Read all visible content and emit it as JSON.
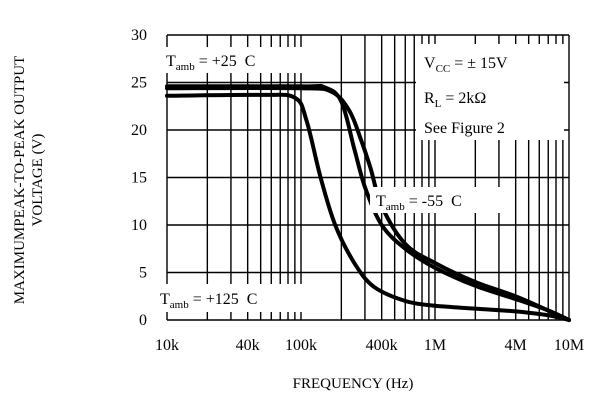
{
  "chart_data": {
    "type": "line",
    "title": "",
    "xlabel": "FREQUENCY (Hz)",
    "ylabel": "MAXIMUMPEAK-TO-PEAK OUTPUT VOLTAGE (V)",
    "ylabel_lines": [
      "MAXIMUMPEAK-TO-PEAK OUTPUT",
      "VOLTAGE (V)"
    ],
    "x_scale": "log",
    "xlim": [
      10000,
      10000000
    ],
    "ylim": [
      0,
      30
    ],
    "grid": true,
    "x_ticks": [
      {
        "value": 10000,
        "label": "10k"
      },
      {
        "value": 40000,
        "label": "40k"
      },
      {
        "value": 100000,
        "label": "100k"
      },
      {
        "value": 400000,
        "label": "400k"
      },
      {
        "value": 1000000,
        "label": "1M"
      },
      {
        "value": 4000000,
        "label": "4M"
      },
      {
        "value": 10000000,
        "label": "10M"
      }
    ],
    "y_ticks": [
      0,
      5,
      10,
      15,
      20,
      25,
      30
    ],
    "y_tick_labels": [
      "0",
      "5",
      "10",
      "15",
      "20",
      "25",
      "30"
    ],
    "series": [
      {
        "annotation": {
          "main": "T",
          "sub": "amb",
          "rest": " = +25  C"
        },
        "points": [
          [
            10000,
            24.6
          ],
          [
            100000,
            24.6
          ],
          [
            150000,
            24.5
          ],
          [
            200000,
            23.0
          ],
          [
            250000,
            18.0
          ],
          [
            300000,
            14.0
          ],
          [
            400000,
            10.0
          ],
          [
            600000,
            7.5
          ],
          [
            1000000,
            5.5
          ],
          [
            2000000,
            3.6
          ],
          [
            4000000,
            2.2
          ],
          [
            7000000,
            1.0
          ],
          [
            10000000,
            0.0
          ]
        ]
      },
      {
        "annotation": {
          "main": "T",
          "sub": "amb",
          "rest": " = -55  C"
        },
        "points": [
          [
            10000,
            24.4
          ],
          [
            100000,
            24.4
          ],
          [
            170000,
            24.0
          ],
          [
            230000,
            22.0
          ],
          [
            280000,
            19.0
          ],
          [
            330000,
            16.0
          ],
          [
            400000,
            12.0
          ],
          [
            600000,
            8.0
          ],
          [
            1000000,
            6.0
          ],
          [
            2000000,
            4.0
          ],
          [
            4000000,
            2.5
          ],
          [
            7000000,
            1.0
          ],
          [
            10000000,
            0.0
          ]
        ]
      },
      {
        "annotation": {
          "main": "T",
          "sub": "amb",
          "rest": " = +125  C"
        },
        "points": [
          [
            10000,
            23.6
          ],
          [
            50000,
            23.7
          ],
          [
            90000,
            23.4
          ],
          [
            110000,
            21.0
          ],
          [
            140000,
            15.0
          ],
          [
            180000,
            10.0
          ],
          [
            250000,
            6.0
          ],
          [
            350000,
            3.5
          ],
          [
            600000,
            2.0
          ],
          [
            1000000,
            1.5
          ],
          [
            2000000,
            1.2
          ],
          [
            4000000,
            0.9
          ],
          [
            7000000,
            0.5
          ],
          [
            10000000,
            0.0
          ]
        ]
      }
    ],
    "conditions": [
      {
        "main": "V",
        "sub": "CC",
        "rest": " = ± 15V"
      },
      {
        "main": "R",
        "sub": "L",
        "rest": " = 2kΩ"
      },
      {
        "main": "See Figure 2",
        "sub": "",
        "rest": ""
      }
    ],
    "colors": {
      "line": "#000000",
      "grid": "#000000",
      "background": "#ffffff"
    }
  }
}
